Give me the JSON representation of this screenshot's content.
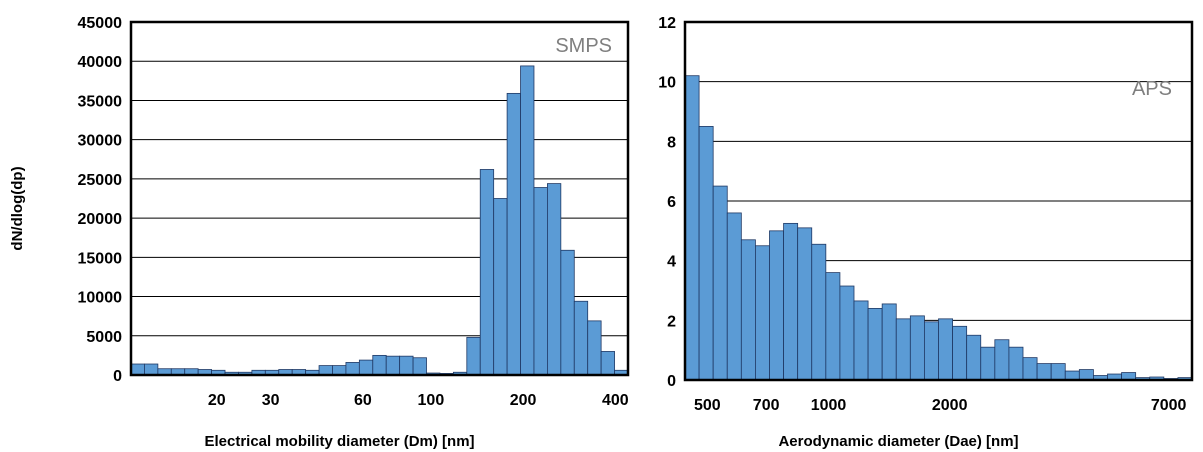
{
  "chart_data": [
    {
      "type": "bar",
      "panel_label": "SMPS",
      "title": "",
      "ylabel": "dN/dlog(dp)",
      "xlabel": "Electrical mobility diameter (Dm) [nm]",
      "x_scale": "log",
      "xlim": [
        10.5,
        440
      ],
      "ylim": [
        0,
        45000
      ],
      "y_ticks": [
        0,
        5000,
        10000,
        15000,
        20000,
        25000,
        30000,
        35000,
        40000,
        45000
      ],
      "x_ticks": [
        20,
        30,
        60,
        100,
        200,
        400
      ],
      "grid": "horizontal",
      "values": [
        1400,
        1400,
        800,
        800,
        800,
        700,
        600,
        350,
        350,
        600,
        600,
        700,
        700,
        600,
        1200,
        1200,
        1600,
        1900,
        2500,
        2400,
        2400,
        2200,
        250,
        200,
        350,
        4800,
        26200,
        22500,
        35900,
        39400,
        23900,
        24400,
        15900,
        9400,
        6900,
        3000,
        600
      ]
    },
    {
      "type": "bar",
      "panel_label": "APS",
      "title": "",
      "ylabel": "",
      "xlabel": "Aerodynamic diameter (Dae) [nm]",
      "x_scale": "log",
      "xlim": [
        440,
        8000
      ],
      "ylim": [
        0,
        12
      ],
      "y_ticks": [
        0,
        2,
        4,
        6,
        8,
        10,
        12
      ],
      "x_ticks": [
        500,
        700,
        1000,
        2000,
        7000
      ],
      "grid": "horizontal",
      "values": [
        10.2,
        8.5,
        6.5,
        5.6,
        4.7,
        4.5,
        5.0,
        5.25,
        5.1,
        4.55,
        3.6,
        3.15,
        2.65,
        2.4,
        2.55,
        2.05,
        2.15,
        1.95,
        2.05,
        1.8,
        1.5,
        1.1,
        1.35,
        1.1,
        0.75,
        0.55,
        0.55,
        0.3,
        0.35,
        0.15,
        0.2,
        0.25,
        0.08,
        0.1,
        0.05,
        0.08
      ]
    }
  ]
}
